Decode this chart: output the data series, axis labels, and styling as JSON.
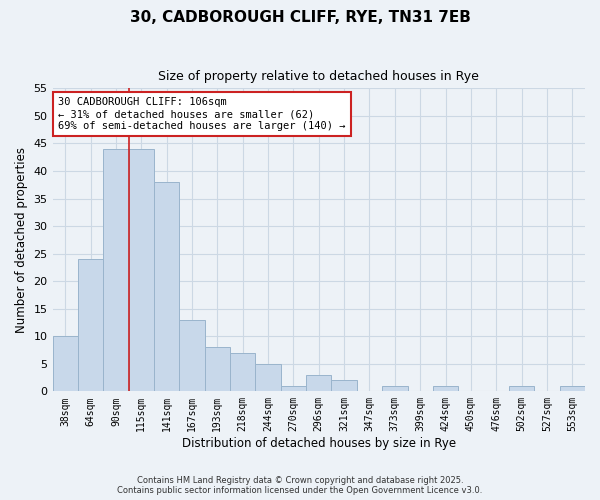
{
  "title1": "30, CADBOROUGH CLIFF, RYE, TN31 7EB",
  "title2": "Size of property relative to detached houses in Rye",
  "xlabel": "Distribution of detached houses by size in Rye",
  "ylabel": "Number of detached properties",
  "categories": [
    "38sqm",
    "64sqm",
    "90sqm",
    "115sqm",
    "141sqm",
    "167sqm",
    "193sqm",
    "218sqm",
    "244sqm",
    "270sqm",
    "296sqm",
    "321sqm",
    "347sqm",
    "373sqm",
    "399sqm",
    "424sqm",
    "450sqm",
    "476sqm",
    "502sqm",
    "527sqm",
    "553sqm"
  ],
  "values": [
    10,
    24,
    44,
    44,
    38,
    13,
    8,
    7,
    5,
    1,
    3,
    2,
    0,
    1,
    0,
    1,
    0,
    0,
    1,
    0,
    1
  ],
  "bar_color": "#c8d8ea",
  "bar_edge_color": "#9ab4cc",
  "grid_color": "#ccd8e4",
  "background_color": "#edf2f7",
  "vline_color": "#cc2222",
  "annotation_text": "30 CADBOROUGH CLIFF: 106sqm\n← 31% of detached houses are smaller (62)\n69% of semi-detached houses are larger (140) →",
  "annotation_box_color": "#ffffff",
  "annotation_box_edge": "#cc2222",
  "ylim": [
    0,
    55
  ],
  "yticks": [
    0,
    5,
    10,
    15,
    20,
    25,
    30,
    35,
    40,
    45,
    50,
    55
  ],
  "footer1": "Contains HM Land Registry data © Crown copyright and database right 2025.",
  "footer2": "Contains public sector information licensed under the Open Government Licence v3.0."
}
